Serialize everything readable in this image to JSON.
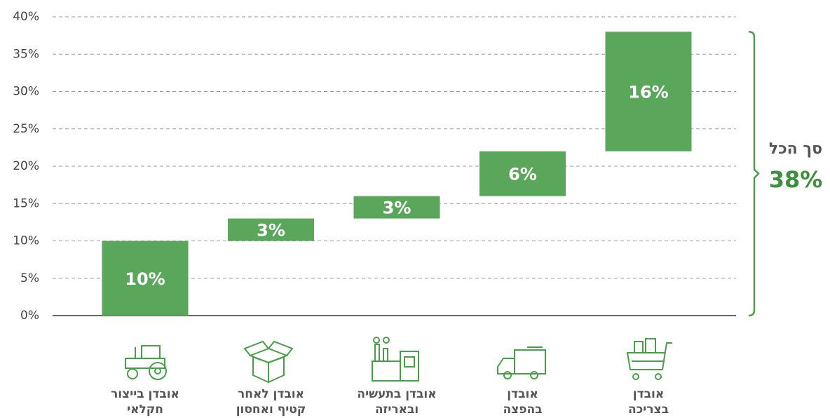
{
  "chart_data": {
    "type": "waterfall",
    "categories": [
      [
        "אובדן בייצור",
        "חקלאי"
      ],
      [
        "אובדן לאחר",
        "קטיף ואחסון"
      ],
      [
        "אובדן בתעשיה",
        "ובאריזה"
      ],
      [
        "אובדן",
        "בהפצה"
      ],
      [
        "אובדן",
        "בצריכה"
      ]
    ],
    "values": [
      10,
      3,
      3,
      6,
      16
    ],
    "value_labels": [
      "10%",
      "3%",
      "3%",
      "6%",
      "16%"
    ],
    "color": "#5aa65a",
    "ylim": [
      0,
      40
    ],
    "yticks": [
      {
        "value": 0,
        "label": "0%"
      },
      {
        "value": 5,
        "label": "5%"
      },
      {
        "value": 10,
        "label": "10%"
      },
      {
        "value": 15,
        "label": "15%"
      },
      {
        "value": 20,
        "label": "20%"
      },
      {
        "value": 25,
        "label": "25%"
      },
      {
        "value": 30,
        "label": "30%"
      },
      {
        "value": 35,
        "label": "35%"
      },
      {
        "value": 40,
        "label": "40%"
      }
    ],
    "grid": true,
    "total": {
      "label": "סך הכל",
      "value": 38,
      "value_label": "38%"
    }
  }
}
